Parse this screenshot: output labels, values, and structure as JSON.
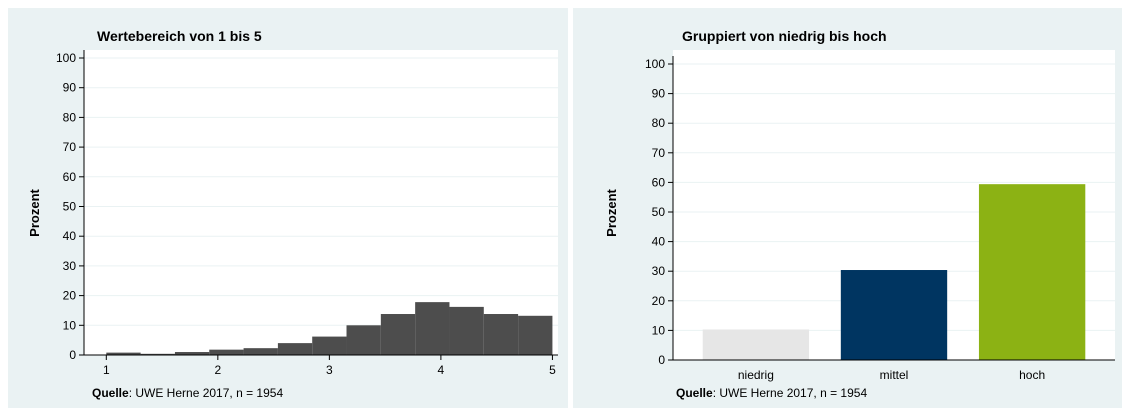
{
  "chart_data": [
    {
      "type": "bar",
      "title": "Wertebereich von 1 bis 5",
      "ylabel": "Prozent",
      "xlabel": "",
      "ylim": [
        0,
        100
      ],
      "yticks": [
        0,
        10,
        20,
        30,
        40,
        50,
        60,
        70,
        80,
        90,
        100
      ],
      "xticks": [
        1,
        2,
        3,
        4,
        5
      ],
      "xlim": [
        0.8,
        5.05
      ],
      "bin_width": 0.3077,
      "bins": [
        {
          "x0": 1.0,
          "value": 0.8
        },
        {
          "x0": 1.3077,
          "value": 0.4
        },
        {
          "x0": 1.6154,
          "value": 1.0
        },
        {
          "x0": 1.9231,
          "value": 1.8
        },
        {
          "x0": 2.2308,
          "value": 2.3
        },
        {
          "x0": 2.5385,
          "value": 4.0
        },
        {
          "x0": 2.8462,
          "value": 6.2
        },
        {
          "x0": 3.1538,
          "value": 10.0
        },
        {
          "x0": 3.4615,
          "value": 13.8
        },
        {
          "x0": 3.7692,
          "value": 17.8
        },
        {
          "x0": 4.0769,
          "value": 16.2
        },
        {
          "x0": 4.3846,
          "value": 13.8
        },
        {
          "x0": 4.6923,
          "value": 13.2
        }
      ],
      "bar_color": "#4d4d4d",
      "source_label": "Quelle",
      "source_text": ": UWE Herne 2017, n = 1954"
    },
    {
      "type": "bar",
      "title": "Gruppiert von niedrig bis hoch",
      "ylabel": "Prozent",
      "xlabel": "",
      "ylim": [
        0,
        100
      ],
      "yticks": [
        0,
        10,
        20,
        30,
        40,
        50,
        60,
        70,
        80,
        90,
        100
      ],
      "categories": [
        "niedrig",
        "mittel",
        "hoch"
      ],
      "values": [
        10.3,
        30.4,
        59.4
      ],
      "colors": [
        "#e6e6e6",
        "#003561",
        "#8cb214"
      ],
      "source_label": "Quelle",
      "source_text": ": UWE Herne 2017, n = 1954"
    }
  ]
}
